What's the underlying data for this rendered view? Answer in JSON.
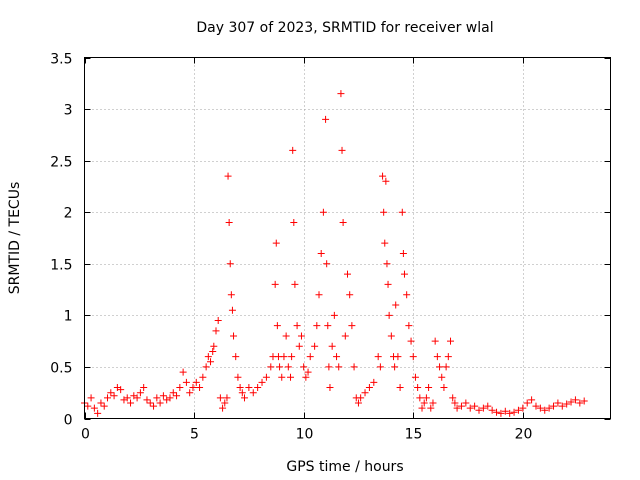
{
  "chart_data": {
    "type": "scatter",
    "title": "Day 307 of 2023, SRMTID for receiver wlal",
    "xlabel": "GPS time / hours",
    "ylabel": "SRMTID / TECUs",
    "xlim": [
      0,
      24
    ],
    "ylim": [
      0,
      3.5
    ],
    "xticks": [
      0,
      5,
      10,
      15,
      20
    ],
    "xtick_labels": [
      "0",
      "5",
      "10",
      "15",
      "20"
    ],
    "yticks": [
      0,
      0.5,
      1,
      1.5,
      2,
      2.5,
      3,
      3.5
    ],
    "ytick_labels": [
      "0",
      "0.5",
      "1",
      "1.5",
      "2",
      "2.5",
      "3",
      "3.5"
    ],
    "grid": true,
    "marker": "+",
    "series": [
      {
        "name": "SRMTID",
        "color": "#ff0000",
        "x": [
          0.0,
          0.15,
          0.3,
          0.45,
          0.6,
          0.75,
          0.9,
          1.05,
          1.2,
          1.35,
          1.5,
          1.65,
          1.8,
          1.95,
          2.1,
          2.25,
          2.4,
          2.55,
          2.7,
          2.85,
          3.0,
          3.15,
          3.3,
          3.45,
          3.6,
          3.75,
          3.9,
          4.05,
          4.2,
          4.35,
          4.5,
          4.65,
          4.8,
          4.95,
          5.1,
          5.25,
          5.4,
          5.55,
          5.65,
          5.75,
          5.85,
          5.9,
          6.0,
          6.1,
          6.2,
          6.3,
          6.4,
          6.5,
          6.55,
          6.6,
          6.65,
          6.7,
          6.75,
          6.8,
          6.9,
          7.0,
          7.1,
          7.2,
          7.3,
          7.5,
          7.7,
          7.9,
          8.1,
          8.3,
          8.5,
          8.6,
          8.7,
          8.75,
          8.8,
          8.85,
          8.9,
          9.0,
          9.1,
          9.2,
          9.3,
          9.4,
          9.45,
          9.5,
          9.55,
          9.6,
          9.7,
          9.8,
          9.9,
          10.0,
          10.1,
          10.2,
          10.3,
          10.5,
          10.6,
          10.7,
          10.8,
          10.9,
          11.0,
          11.05,
          11.1,
          11.15,
          11.2,
          11.3,
          11.4,
          11.5,
          11.6,
          11.7,
          11.75,
          11.8,
          11.9,
          12.0,
          12.1,
          12.2,
          12.3,
          12.4,
          12.5,
          12.6,
          12.8,
          13.0,
          13.2,
          13.4,
          13.5,
          13.6,
          13.65,
          13.7,
          13.75,
          13.8,
          13.85,
          13.9,
          14.0,
          14.1,
          14.15,
          14.2,
          14.3,
          14.4,
          14.5,
          14.55,
          14.6,
          14.7,
          14.8,
          14.9,
          15.0,
          15.1,
          15.2,
          15.3,
          15.4,
          15.5,
          15.6,
          15.7,
          15.8,
          15.9,
          16.0,
          16.1,
          16.2,
          16.3,
          16.4,
          16.5,
          16.6,
          16.7,
          16.8,
          16.9,
          17.0,
          17.2,
          17.4,
          17.6,
          17.8,
          18.0,
          18.2,
          18.4,
          18.6,
          18.8,
          19.0,
          19.2,
          19.4,
          19.6,
          19.8,
          20.0,
          20.2,
          20.4,
          20.6,
          20.8,
          21.0,
          21.2,
          21.4,
          21.6,
          21.8,
          22.0,
          22.2,
          22.4,
          22.6,
          22.8
        ],
        "y": [
          0.15,
          0.12,
          0.2,
          0.1,
          0.05,
          0.15,
          0.12,
          0.2,
          0.25,
          0.22,
          0.3,
          0.28,
          0.18,
          0.2,
          0.15,
          0.22,
          0.2,
          0.25,
          0.3,
          0.18,
          0.15,
          0.12,
          0.2,
          0.15,
          0.22,
          0.18,
          0.2,
          0.25,
          0.22,
          0.3,
          0.45,
          0.35,
          0.25,
          0.3,
          0.35,
          0.3,
          0.4,
          0.5,
          0.6,
          0.55,
          0.65,
          0.7,
          0.85,
          0.95,
          0.2,
          0.1,
          0.15,
          0.2,
          2.35,
          1.9,
          1.5,
          1.2,
          1.05,
          0.8,
          0.6,
          0.4,
          0.3,
          0.25,
          0.2,
          0.3,
          0.25,
          0.3,
          0.35,
          0.4,
          0.5,
          0.6,
          1.3,
          1.7,
          0.9,
          0.6,
          0.5,
          0.4,
          0.6,
          0.8,
          0.5,
          0.4,
          0.6,
          2.6,
          1.9,
          1.3,
          0.9,
          0.7,
          0.8,
          0.5,
          0.4,
          0.45,
          0.6,
          0.7,
          0.9,
          1.2,
          1.6,
          2.0,
          2.9,
          1.5,
          0.9,
          0.5,
          0.3,
          0.7,
          1.0,
          0.6,
          0.5,
          3.15,
          2.6,
          1.9,
          0.8,
          1.4,
          1.2,
          0.9,
          0.5,
          0.2,
          0.15,
          0.2,
          0.25,
          0.3,
          0.35,
          0.6,
          0.5,
          2.35,
          2.0,
          1.7,
          2.3,
          1.5,
          1.3,
          1.0,
          0.8,
          0.6,
          0.5,
          1.1,
          0.6,
          0.3,
          2.0,
          1.6,
          1.4,
          1.2,
          0.9,
          0.75,
          0.6,
          0.4,
          0.3,
          0.2,
          0.1,
          0.15,
          0.2,
          0.3,
          0.1,
          0.15,
          0.75,
          0.6,
          0.5,
          0.4,
          0.3,
          0.5,
          0.6,
          0.75,
          0.2,
          0.15,
          0.1,
          0.12,
          0.15,
          0.1,
          0.12,
          0.08,
          0.1,
          0.12,
          0.08,
          0.06,
          0.05,
          0.07,
          0.05,
          0.06,
          0.08,
          0.1,
          0.15,
          0.18,
          0.12,
          0.1,
          0.08,
          0.1,
          0.12,
          0.15,
          0.12,
          0.14,
          0.16,
          0.18,
          0.15,
          0.17
        ]
      }
    ]
  }
}
